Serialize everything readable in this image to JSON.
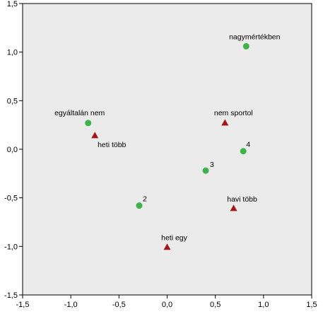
{
  "chart_data": {
    "type": "scatter",
    "xlim": [
      -1.5,
      1.5
    ],
    "ylim": [
      -1.5,
      1.5
    ],
    "x_ticks": [
      -1.5,
      -1.0,
      -0.5,
      0.0,
      0.5,
      1.0,
      1.5
    ],
    "y_ticks": [
      -1.5,
      -1.0,
      -0.5,
      0.0,
      0.5,
      1.0,
      1.5
    ],
    "x_tick_labels": [
      "-1,5",
      "-1,0",
      "-0,5",
      "0,0",
      "0,5",
      "1,0",
      "1,5"
    ],
    "y_tick_labels": [
      "-1,5",
      "-1,0",
      "-0,5",
      "0,0",
      "0,5",
      "1,0",
      "1,5"
    ],
    "grid": false,
    "plot_background": "#ebebeb",
    "series": [
      {
        "marker": "circle",
        "color": "#3cb44b",
        "points": [
          {
            "x": 0.82,
            "y": 1.06,
            "label": "nagymértékben"
          },
          {
            "x": -0.82,
            "y": 0.27,
            "label": "egyáltalán nem"
          },
          {
            "x": 0.79,
            "y": -0.02,
            "label": "4"
          },
          {
            "x": 0.4,
            "y": -0.22,
            "label": "3"
          },
          {
            "x": -0.29,
            "y": -0.58,
            "label": "2"
          }
        ]
      },
      {
        "marker": "triangle",
        "color": "#a01818",
        "points": [
          {
            "x": 0.6,
            "y": 0.27,
            "label": "nem sportol"
          },
          {
            "x": -0.75,
            "y": 0.14,
            "label": "heti több"
          },
          {
            "x": 0.69,
            "y": -0.61,
            "label": "havi több"
          },
          {
            "x": 0.0,
            "y": -1.01,
            "label": "heti egy"
          }
        ]
      }
    ]
  }
}
